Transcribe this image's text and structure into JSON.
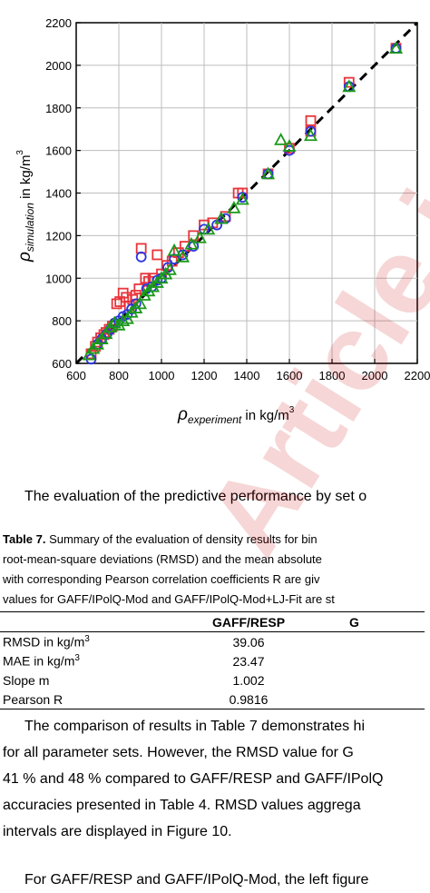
{
  "chart_data": {
    "type": "scatter",
    "xlabel_main": "ρ",
    "xlabel_sub": "experiment",
    "xlabel_unit": " in kg/m",
    "xlabel_sup": "3",
    "ylabel_main": "ρ",
    "ylabel_sub": "simulation",
    "ylabel_unit": " in kg/m",
    "ylabel_sup": "3",
    "xlim": [
      600,
      2200
    ],
    "ylim": [
      600,
      2200
    ],
    "xticks": [
      "600",
      "800",
      "1000",
      "1200",
      "1400",
      "1600",
      "1800",
      "2000",
      "2200"
    ],
    "yticks": [
      "600",
      "800",
      "1000",
      "1200",
      "1400",
      "1600",
      "1800",
      "2000",
      "2200"
    ],
    "reference_line": {
      "style": "dashed",
      "color": "#000000",
      "from": [
        600,
        600
      ],
      "to": [
        2200,
        2200
      ]
    },
    "series": [
      {
        "marker": "square",
        "color": "#e8343a",
        "x": [
          670,
          690,
          700,
          715,
          730,
          740,
          755,
          770,
          790,
          805,
          820,
          835,
          850,
          865,
          880,
          895,
          905,
          925,
          940,
          960,
          980,
          1000,
          1025,
          1050,
          1080,
          1110,
          1150,
          1200,
          1240,
          1300,
          1360,
          1380,
          1500,
          1600,
          1700,
          1700,
          1880,
          2100
        ],
        "y": [
          645,
          680,
          700,
          720,
          735,
          745,
          760,
          775,
          880,
          890,
          930,
          910,
          870,
          900,
          920,
          950,
          1140,
          1000,
          985,
          1000,
          1110,
          1020,
          1060,
          1080,
          1120,
          1150,
          1200,
          1250,
          1260,
          1290,
          1400,
          1400,
          1490,
          1610,
          1740,
          1690,
          1920,
          2080
        ]
      },
      {
        "marker": "circle",
        "color": "#2b34e0",
        "x": [
          670,
          700,
          720,
          745,
          760,
          780,
          800,
          820,
          840,
          860,
          880,
          905,
          930,
          955,
          980,
          1000,
          1030,
          1060,
          1100,
          1150,
          1200,
          1260,
          1300,
          1380,
          1500,
          1600,
          1700,
          1880,
          2100
        ],
        "y": [
          620,
          690,
          715,
          740,
          760,
          790,
          800,
          820,
          830,
          855,
          880,
          1100,
          950,
          960,
          990,
          1000,
          1050,
          1090,
          1110,
          1150,
          1230,
          1250,
          1280,
          1380,
          1490,
          1600,
          1690,
          1900,
          2080
        ]
      },
      {
        "marker": "triangle",
        "color": "#1a9a1a",
        "x": [
          660,
          680,
          700,
          720,
          740,
          760,
          780,
          800,
          820,
          840,
          860,
          880,
          900,
          920,
          940,
          960,
          980,
          1000,
          1020,
          1040,
          1060,
          1100,
          1140,
          1180,
          1220,
          1280,
          1340,
          1380,
          1500,
          1560,
          1600,
          1700,
          1880,
          2100
        ],
        "y": [
          640,
          670,
          690,
          715,
          740,
          770,
          790,
          780,
          800,
          810,
          840,
          860,
          880,
          920,
          940,
          960,
          980,
          1000,
          1020,
          1040,
          1130,
          1100,
          1160,
          1190,
          1230,
          1280,
          1330,
          1370,
          1490,
          1650,
          1620,
          1670,
          1900,
          2080
        ]
      }
    ]
  },
  "paragraph1": "The evaluation of the predictive performance by set o",
  "caption": {
    "label": "Table 7.",
    "line1": " Summary of the evaluation of density results for bin",
    "line2": "root-mean-square deviations (RMSD) and the mean absolute",
    "line3": "with corresponding Pearson correlation coefficients R are giv",
    "line4": "values for GAFF/IPolQ-Mod and GAFF/IPolQ-Mod+LJ-Fit are st"
  },
  "table": {
    "header": [
      "",
      "GAFF/RESP",
      "G"
    ],
    "rows": [
      {
        "label": "RMSD in kg/m",
        "sup": "3",
        "value": "39.06"
      },
      {
        "label": "MAE in kg/m",
        "sup": "3",
        "value": "23.47"
      },
      {
        "label": "Slope m",
        "sup": "",
        "value": "1.002"
      },
      {
        "label": "Pearson R",
        "sup": "",
        "value": "0.9816"
      }
    ]
  },
  "paragraph2": [
    "The comparison of results in Table 7 demonstrates hi",
    "for all parameter sets. However, the RMSD value for G",
    "41 % and 48 % compared to GAFF/RESP and GAFF/IPolQ",
    "accuracies presented in Table 4. RMSD values aggrega",
    "intervals are displayed in Figure 10."
  ],
  "paragraph3": "For GAFF/RESP and GAFF/IPolQ-Mod, the left figure",
  "watermark": "Article in"
}
